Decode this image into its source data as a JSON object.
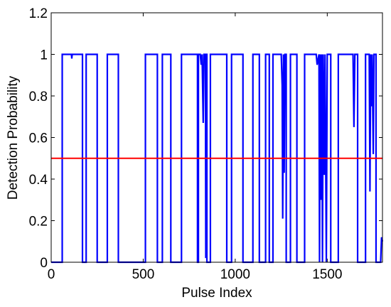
{
  "chart_data": {
    "type": "line",
    "xlabel": "Pulse Index",
    "ylabel": "Detection Probability",
    "xlim": [
      0,
      1800
    ],
    "xticks": [
      0,
      500,
      1000,
      1500
    ],
    "ylim": [
      0,
      1.2
    ],
    "yticks": [
      0,
      0.2,
      0.4,
      0.6,
      0.8,
      1,
      1.2
    ],
    "grid": false,
    "series": [
      {
        "color": "#0000ff",
        "x": [
          0,
          60,
          60,
          110,
          112,
          114,
          170,
          170,
          190,
          190,
          250,
          250,
          305,
          305,
          365,
          365,
          512,
          512,
          577,
          577,
          604,
          604,
          650,
          650,
          708,
          708,
          795,
          795,
          800,
          800,
          810,
          815,
          820,
          826,
          830,
          838,
          840,
          842,
          846,
          846,
          865,
          865,
          954,
          954,
          980,
          980,
          1042,
          1042,
          1096,
          1096,
          1131,
          1131,
          1165,
          1165,
          1185,
          1185,
          1205,
          1205,
          1250,
          1255,
          1258,
          1262,
          1266,
          1270,
          1277,
          1277,
          1300,
          1300,
          1335,
          1335,
          1377,
          1377,
          1440,
          1445,
          1455,
          1458,
          1462,
          1466,
          1470,
          1474,
          1478,
          1484,
          1488,
          1495,
          1500,
          1519,
          1519,
          1560,
          1560,
          1640,
          1645,
          1650,
          1665,
          1665,
          1708,
          1708,
          1728,
          1732,
          1736,
          1740,
          1744,
          1750,
          1754,
          1765,
          1765,
          1790,
          1795,
          1800
        ],
        "values": [
          0,
          0,
          1,
          1,
          0.98,
          1,
          1,
          0,
          0,
          1,
          1,
          0,
          0,
          1,
          1,
          0,
          0,
          1,
          1,
          0,
          0,
          1,
          1,
          0,
          0,
          1,
          1,
          0,
          0,
          1,
          1,
          0.95,
          1,
          0.67,
          1,
          1,
          0.02,
          1,
          1,
          0,
          0,
          1,
          1,
          0,
          0,
          1,
          1,
          0,
          0,
          1,
          1,
          0,
          0,
          1,
          1,
          0,
          0,
          1,
          1,
          0.85,
          0.21,
          1,
          0.43,
          1,
          1,
          0,
          0,
          1,
          1,
          0,
          0,
          1,
          1,
          0.95,
          1,
          0,
          1,
          0.3,
          1,
          0,
          1,
          0.42,
          1,
          0,
          1,
          1,
          0,
          0,
          1,
          1,
          0.65,
          1,
          1,
          0,
          0,
          1,
          1,
          0.34,
          1,
          0.75,
          1,
          0.52,
          1,
          1,
          0,
          0,
          0.12,
          0.1
        ]
      },
      {
        "color": "#ff0000",
        "x": [
          0,
          1800
        ],
        "values": [
          0.5,
          0.5
        ]
      }
    ]
  }
}
